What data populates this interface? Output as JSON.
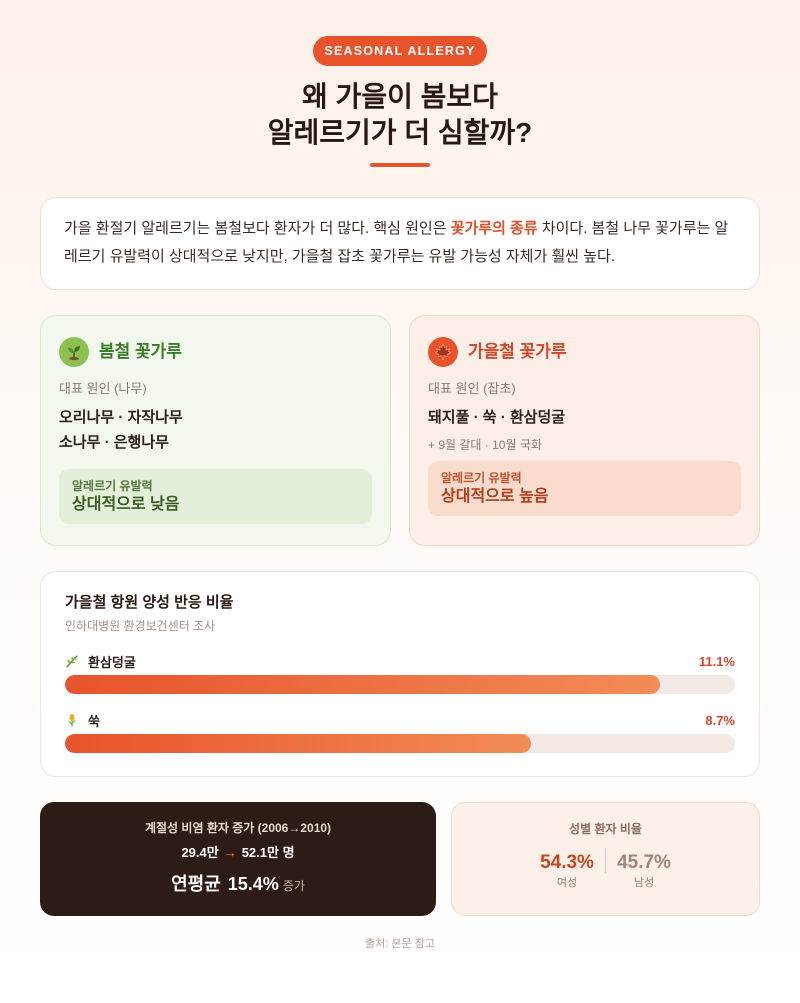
{
  "badge": "SEASONAL ALLERGY",
  "title": {
    "line1": "왜 가을이 봄보다",
    "line2": "알레르기가 더 심할까?"
  },
  "intro": {
    "before": "가을 환절기 알레르기는 봄철보다 환자가 더 많다. 핵심 원인은 ",
    "highlight": "꽃가루의 종류",
    "after": " 차이다. 봄철 나무 꽃가루는 알레르기 유발력이 상대적으로 낮지만, 가을철 잡초 꽃가루는 유발 가능성 자체가 훨씬 높다."
  },
  "spring": {
    "icon": "sprout-icon",
    "title": "봄철 꽃가루",
    "cause_label": "대표 원인 (나무)",
    "plants": [
      "오리나무 · 자작나무",
      "소나무 · 은행나무"
    ],
    "potency_label": "알레르기 유발력",
    "potency_value": "상대적으로 낮음"
  },
  "autumn": {
    "icon": "maple-leaf-icon",
    "title": "가을철 꽃가루",
    "cause_label": "대표 원인 (잡초)",
    "plants": [
      "돼지풀 · 쑥 · 환삼덩굴"
    ],
    "note": "+ 9월 갈대 · 10월 국화",
    "potency_label": "알레르기 유발력",
    "potency_value": "상대적으로 높음"
  },
  "chart_data": {
    "type": "bar",
    "horizontal": true,
    "title": "가을철 항원 양성 반응 비율",
    "subtitle": "인하대병원 환경보건센터 조사",
    "categories": [
      "환삼덩굴",
      "쑥"
    ],
    "values": [
      11.1,
      8.7
    ],
    "value_labels": [
      "11.1%",
      "8.7%"
    ],
    "xlim": [
      0,
      12.5
    ],
    "icons": [
      "herb-icon",
      "wheat-icon"
    ]
  },
  "stats": {
    "increase": {
      "label": "계절성 비염 환자 증가 (2006→2010)",
      "from": "29.4만",
      "arrow": "→",
      "to": "52.1만 명",
      "avg_label": "연평균",
      "avg_value": "15.4%",
      "avg_suffix": "증가"
    },
    "gender": {
      "label": "성별 환자 비율",
      "female_value": "54.3%",
      "female_label": "여성",
      "male_value": "45.7%",
      "male_label": "남성"
    }
  },
  "source": "출처: 본문 참고",
  "colors": {
    "accent": "#e9532b",
    "title_text": "#2a1812",
    "spring_title": "#3b7d27",
    "spring_icon_bg": "#8cc152",
    "autumn_title": "#d6472a",
    "autumn_icon_bg": "#e9532b",
    "bar_fill_start": "#e8532c",
    "bar_fill_end": "#f28c58",
    "dark_card_bg": "#2d1b15",
    "arrow": "#ff7a45",
    "female_value": "#c9431e",
    "male_value": "#a38378"
  }
}
